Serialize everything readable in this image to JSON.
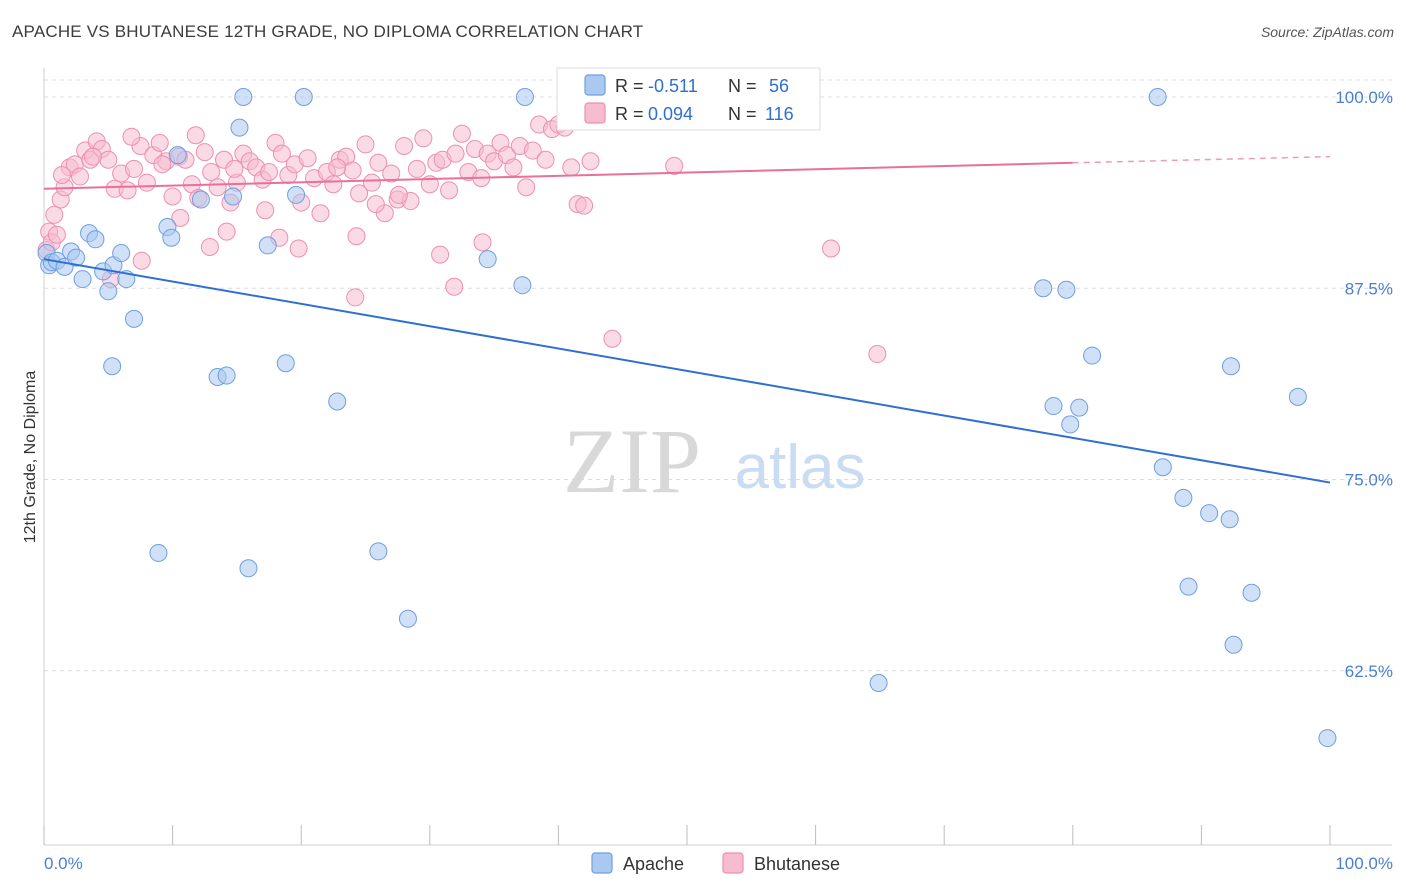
{
  "title": "APACHE VS BHUTANESE 12TH GRADE, NO DIPLOMA CORRELATION CHART",
  "source": "Source: ZipAtlas.com",
  "colors": {
    "apache_fill": "#aac8f0",
    "apache_stroke": "#6f9fe0",
    "apache_line": "#2f6fd1",
    "bhutanese_fill": "#f6bcd0",
    "bhutanese_stroke": "#ee8fb0",
    "bhutanese_line": "#e8709a",
    "tick_label": "#4a7fd0",
    "grid": "#dcdcdc"
  },
  "legend_box": {
    "apache": {
      "r_label": "R = ",
      "r_value": "-0.511",
      "n_label": "N = ",
      "n_value": "56"
    },
    "bhutanese": {
      "r_label": "R = ",
      "r_value": "0.094",
      "n_label": "N = ",
      "n_value": "116"
    }
  },
  "watermark": {
    "zip": "ZIP",
    "atlas": "atlas"
  },
  "chart_data": {
    "type": "scatter",
    "title": "APACHE VS BHUTANESE 12TH GRADE, NO DIPLOMA CORRELATION CHART",
    "xlabel": "",
    "ylabel": "12th Grade, No Diploma",
    "xlim": [
      0,
      100
    ],
    "ylim": [
      52,
      102
    ],
    "x_tick_labels": [
      "0.0%",
      "100.0%"
    ],
    "y_ticks": [
      62.5,
      75.0,
      87.5,
      100.0
    ],
    "y_tick_labels": [
      "62.5%",
      "75.0%",
      "87.5%",
      "100.0%"
    ],
    "grid": true,
    "legend": {
      "position": "bottom-center",
      "entries": [
        "Apache",
        "Bhutanese"
      ]
    },
    "series": [
      {
        "name": "Apache",
        "R": -0.511,
        "N": 56,
        "trend": {
          "x": [
            0,
            100
          ],
          "y": [
            89.4,
            74.8
          ]
        },
        "points": [
          [
            0.2,
            89.8
          ],
          [
            0.4,
            89.0
          ],
          [
            0.6,
            89.2
          ],
          [
            1.0,
            89.3
          ],
          [
            1.6,
            88.9
          ],
          [
            2.1,
            89.9
          ],
          [
            2.5,
            89.5
          ],
          [
            3.0,
            88.1
          ],
          [
            3.5,
            91.1
          ],
          [
            4.0,
            90.7
          ],
          [
            4.6,
            88.6
          ],
          [
            5.0,
            87.3
          ],
          [
            5.4,
            89.0
          ],
          [
            6.0,
            89.8
          ],
          [
            6.4,
            88.1
          ],
          [
            7.0,
            85.5
          ],
          [
            9.6,
            91.5
          ],
          [
            9.9,
            90.8
          ],
          [
            10.4,
            96.2
          ],
          [
            12.2,
            93.3
          ],
          [
            14.7,
            93.5
          ],
          [
            15.2,
            98.0
          ],
          [
            5.3,
            82.4
          ],
          [
            13.5,
            81.7
          ],
          [
            14.2,
            81.8
          ],
          [
            18.8,
            82.6
          ],
          [
            22.8,
            80.1
          ],
          [
            8.9,
            70.2
          ],
          [
            15.9,
            69.2
          ],
          [
            26.0,
            70.3
          ],
          [
            28.3,
            65.9
          ],
          [
            15.5,
            100.0
          ],
          [
            20.2,
            100.0
          ],
          [
            37.4,
            100.0
          ],
          [
            86.6,
            100.0
          ],
          [
            34.5,
            89.4
          ],
          [
            37.2,
            87.7
          ],
          [
            77.7,
            87.5
          ],
          [
            79.5,
            87.4
          ],
          [
            81.5,
            83.1
          ],
          [
            92.3,
            82.4
          ],
          [
            97.5,
            80.4
          ],
          [
            78.5,
            79.8
          ],
          [
            79.8,
            78.6
          ],
          [
            80.5,
            79.7
          ],
          [
            87.0,
            75.8
          ],
          [
            88.6,
            73.8
          ],
          [
            90.6,
            72.8
          ],
          [
            92.2,
            72.4
          ],
          [
            89.0,
            68.0
          ],
          [
            92.5,
            64.2
          ],
          [
            93.9,
            67.6
          ],
          [
            64.9,
            61.7
          ],
          [
            99.8,
            58.1
          ],
          [
            17.4,
            90.3
          ],
          [
            19.6,
            93.6
          ]
        ]
      },
      {
        "name": "Bhutanese",
        "R": 0.094,
        "N": 116,
        "trend": {
          "x": [
            0,
            80
          ],
          "y": [
            94.0,
            95.7
          ],
          "dashed_to": {
            "x": 100,
            "y": 96.1
          }
        },
        "points": [
          [
            0.2,
            90.0
          ],
          [
            0.4,
            91.2
          ],
          [
            0.6,
            90.5
          ],
          [
            0.8,
            92.3
          ],
          [
            1.0,
            91.0
          ],
          [
            1.3,
            93.3
          ],
          [
            1.6,
            94.1
          ],
          [
            2.0,
            95.4
          ],
          [
            2.4,
            95.6
          ],
          [
            2.8,
            94.8
          ],
          [
            3.2,
            96.5
          ],
          [
            3.6,
            95.9
          ],
          [
            4.1,
            97.1
          ],
          [
            4.5,
            96.6
          ],
          [
            5.0,
            95.9
          ],
          [
            5.5,
            94.0
          ],
          [
            6.0,
            95.0
          ],
          [
            6.5,
            93.9
          ],
          [
            7.0,
            95.3
          ],
          [
            7.5,
            96.8
          ],
          [
            8.0,
            94.4
          ],
          [
            8.5,
            96.2
          ],
          [
            9.0,
            97.0
          ],
          [
            9.5,
            95.8
          ],
          [
            10.0,
            93.5
          ],
          [
            10.5,
            96.1
          ],
          [
            11.0,
            95.9
          ],
          [
            11.5,
            94.3
          ],
          [
            12.0,
            93.4
          ],
          [
            12.5,
            96.4
          ],
          [
            13.0,
            95.1
          ],
          [
            13.5,
            94.1
          ],
          [
            14.0,
            95.9
          ],
          [
            14.5,
            93.1
          ],
          [
            15.0,
            94.4
          ],
          [
            15.5,
            96.3
          ],
          [
            16.0,
            95.8
          ],
          [
            16.5,
            95.4
          ],
          [
            17.0,
            94.6
          ],
          [
            17.5,
            95.1
          ],
          [
            18.0,
            97.0
          ],
          [
            18.5,
            96.3
          ],
          [
            19.0,
            94.9
          ],
          [
            19.5,
            95.6
          ],
          [
            20.0,
            93.1
          ],
          [
            20.5,
            96.0
          ],
          [
            21.0,
            94.7
          ],
          [
            21.5,
            92.4
          ],
          [
            22.0,
            95.1
          ],
          [
            22.5,
            94.3
          ],
          [
            23.0,
            95.9
          ],
          [
            23.5,
            96.1
          ],
          [
            24.0,
            95.2
          ],
          [
            24.5,
            93.7
          ],
          [
            25.0,
            96.9
          ],
          [
            25.5,
            94.4
          ],
          [
            26.0,
            95.7
          ],
          [
            26.5,
            92.4
          ],
          [
            27.0,
            95.0
          ],
          [
            27.5,
            93.3
          ],
          [
            28.0,
            96.8
          ],
          [
            28.5,
            93.2
          ],
          [
            29.0,
            95.3
          ],
          [
            29.5,
            97.3
          ],
          [
            30.0,
            94.3
          ],
          [
            30.5,
            95.7
          ],
          [
            31.0,
            95.9
          ],
          [
            31.5,
            93.9
          ],
          [
            32.0,
            96.3
          ],
          [
            32.5,
            97.6
          ],
          [
            33.0,
            95.1
          ],
          [
            33.5,
            96.6
          ],
          [
            34.0,
            94.7
          ],
          [
            34.5,
            96.3
          ],
          [
            35.0,
            95.8
          ],
          [
            35.5,
            97.0
          ],
          [
            36.0,
            96.2
          ],
          [
            36.5,
            95.4
          ],
          [
            37.0,
            96.8
          ],
          [
            37.5,
            94.1
          ],
          [
            38.0,
            96.5
          ],
          [
            38.5,
            98.2
          ],
          [
            39.0,
            95.9
          ],
          [
            39.5,
            97.9
          ],
          [
            40.0,
            98.2
          ],
          [
            40.5,
            98.0
          ],
          [
            41.0,
            95.4
          ],
          [
            41.5,
            93.0
          ],
          [
            42.0,
            92.9
          ],
          [
            42.5,
            95.8
          ],
          [
            1.4,
            94.9
          ],
          [
            3.8,
            96.1
          ],
          [
            6.8,
            97.4
          ],
          [
            9.2,
            95.6
          ],
          [
            11.8,
            97.5
          ],
          [
            14.8,
            95.3
          ],
          [
            17.2,
            92.6
          ],
          [
            19.8,
            90.1
          ],
          [
            22.8,
            95.4
          ],
          [
            25.8,
            93.0
          ],
          [
            30.8,
            89.7
          ],
          [
            34.1,
            90.5
          ],
          [
            7.6,
            89.3
          ],
          [
            5.2,
            88.1
          ],
          [
            10.6,
            92.1
          ],
          [
            12.9,
            90.2
          ],
          [
            14.2,
            91.2
          ],
          [
            18.3,
            90.8
          ],
          [
            24.3,
            90.9
          ],
          [
            27.6,
            93.6
          ],
          [
            31.9,
            87.6
          ],
          [
            24.2,
            86.9
          ],
          [
            44.2,
            84.2
          ],
          [
            49.0,
            95.5
          ],
          [
            61.2,
            90.1
          ],
          [
            64.8,
            83.2
          ]
        ]
      }
    ]
  }
}
